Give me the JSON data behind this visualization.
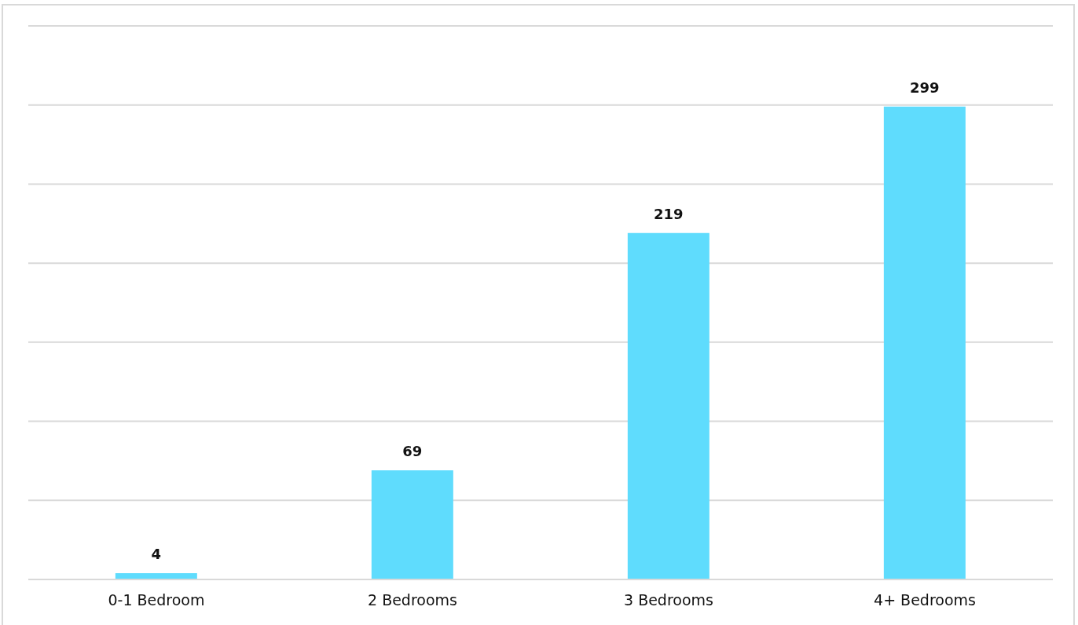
{
  "chart_data": {
    "type": "bar",
    "categories": [
      "0-1 Bedroom",
      "2 Bedrooms",
      "3 Bedrooms",
      "4+ Bedrooms"
    ],
    "values": [
      4,
      69,
      219,
      299
    ],
    "color": "#5fdcfd",
    "ylim": [
      0,
      350
    ],
    "yticks": [
      0,
      50,
      100,
      150,
      200,
      250,
      300,
      350
    ],
    "grid": "y",
    "tick_labels": "x",
    "data_labels": true
  }
}
